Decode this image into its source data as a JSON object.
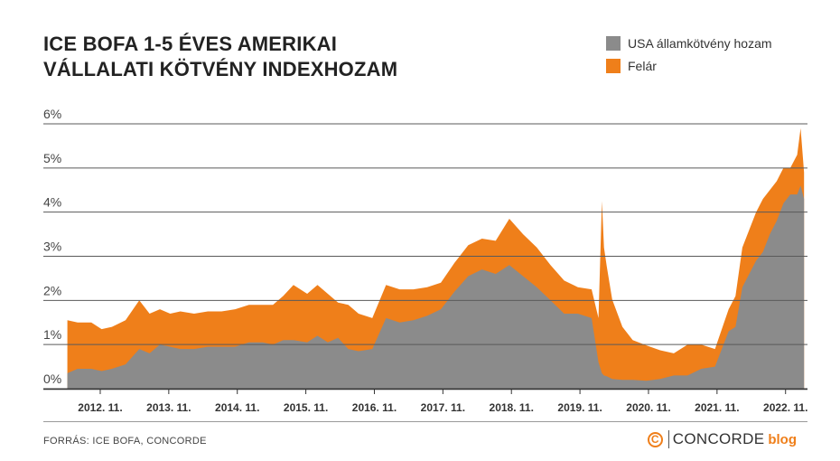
{
  "title": {
    "line1": "ICE BOFA 1-5 ÉVES AMERIKAI",
    "line2": "VÁLLALATI KÖTVÉNY INDEXHOZAM"
  },
  "legend": [
    {
      "label": "USA államkötvény hozam",
      "color": "#8b8b8b"
    },
    {
      "label": "Felár",
      "color": "#ef7f1a"
    }
  ],
  "footer": {
    "source": "FORRÁS: ICE BOFA, CONCORDE",
    "brand_icon": "C",
    "brand_name": "CONCORDE",
    "brand_suffix": "blog"
  },
  "chart_data": {
    "type": "area",
    "stacked": true,
    "ylim": [
      0,
      6
    ],
    "yticks": [
      0,
      1,
      2,
      3,
      4,
      5,
      6
    ],
    "ytick_labels": [
      "0%",
      "1%",
      "2%",
      "3%",
      "4%",
      "5%",
      "6%"
    ],
    "xlim": [
      2012.0,
      2023.15
    ],
    "xticks": [
      2012.83,
      2013.83,
      2014.83,
      2015.83,
      2016.83,
      2017.83,
      2018.83,
      2019.83,
      2020.83,
      2021.83,
      2022.83
    ],
    "xtick_labels": [
      "2012. 11.",
      "2013. 11.",
      "2014. 11.",
      "2015. 11.",
      "2016. 11.",
      "2017. 11.",
      "2018. 11.",
      "2019. 11.",
      "2020. 11.",
      "2021. 11.",
      "2022. 11."
    ],
    "grid": "horizontal",
    "colors": {
      "treasury": "#8b8b8b",
      "spread": "#ef7f1a"
    },
    "x": [
      2012.35,
      2012.5,
      2012.7,
      2012.85,
      2013.0,
      2013.2,
      2013.4,
      2013.55,
      2013.7,
      2013.85,
      2014.0,
      2014.2,
      2014.4,
      2014.6,
      2014.8,
      2015.0,
      2015.2,
      2015.35,
      2015.5,
      2015.65,
      2015.85,
      2016.0,
      2016.15,
      2016.3,
      2016.45,
      2016.6,
      2016.8,
      2017.0,
      2017.2,
      2017.4,
      2017.6,
      2017.8,
      2018.0,
      2018.2,
      2018.4,
      2018.6,
      2018.8,
      2019.0,
      2019.2,
      2019.4,
      2019.6,
      2019.8,
      2020.0,
      2020.1,
      2020.15,
      2020.18,
      2020.22,
      2020.3,
      2020.45,
      2020.6,
      2020.8,
      2021.0,
      2021.2,
      2021.4,
      2021.6,
      2021.8,
      2022.0,
      2022.1,
      2022.2,
      2022.3,
      2022.4,
      2022.5,
      2022.6,
      2022.7,
      2022.8,
      2022.9,
      2023.0,
      2023.05,
      2023.1
    ],
    "series": [
      {
        "name": "USA államkötvény hozam",
        "values": [
          0.35,
          0.45,
          0.45,
          0.4,
          0.45,
          0.55,
          0.9,
          0.8,
          1.0,
          0.95,
          0.9,
          0.9,
          0.95,
          0.95,
          0.95,
          1.05,
          1.05,
          1.0,
          1.1,
          1.1,
          1.05,
          1.2,
          1.05,
          1.15,
          0.9,
          0.85,
          0.9,
          1.6,
          1.5,
          1.55,
          1.65,
          1.8,
          2.2,
          2.55,
          2.7,
          2.6,
          2.8,
          2.55,
          2.3,
          2.0,
          1.7,
          1.7,
          1.6,
          0.6,
          0.35,
          0.3,
          0.28,
          0.22,
          0.2,
          0.2,
          0.18,
          0.22,
          0.3,
          0.3,
          0.45,
          0.5,
          1.3,
          1.4,
          2.3,
          2.6,
          2.9,
          3.1,
          3.5,
          3.8,
          4.2,
          4.4,
          4.4,
          4.6,
          4.3
        ]
      },
      {
        "name": "Felár",
        "values": [
          1.2,
          1.05,
          1.05,
          0.95,
          0.95,
          1.0,
          1.1,
          0.9,
          0.8,
          0.75,
          0.85,
          0.8,
          0.8,
          0.8,
          0.85,
          0.85,
          0.85,
          0.9,
          1.0,
          1.25,
          1.1,
          1.15,
          1.1,
          0.8,
          1.0,
          0.85,
          0.7,
          0.75,
          0.75,
          0.7,
          0.65,
          0.6,
          0.65,
          0.7,
          0.7,
          0.75,
          1.05,
          0.95,
          0.9,
          0.8,
          0.75,
          0.6,
          0.65,
          1.0,
          3.9,
          2.9,
          2.5,
          1.8,
          1.2,
          0.9,
          0.8,
          0.65,
          0.5,
          0.7,
          0.55,
          0.4,
          0.5,
          0.7,
          0.9,
          1.0,
          1.1,
          1.2,
          1.0,
          0.9,
          0.8,
          0.6,
          0.9,
          1.3,
          0.6
        ]
      }
    ]
  }
}
